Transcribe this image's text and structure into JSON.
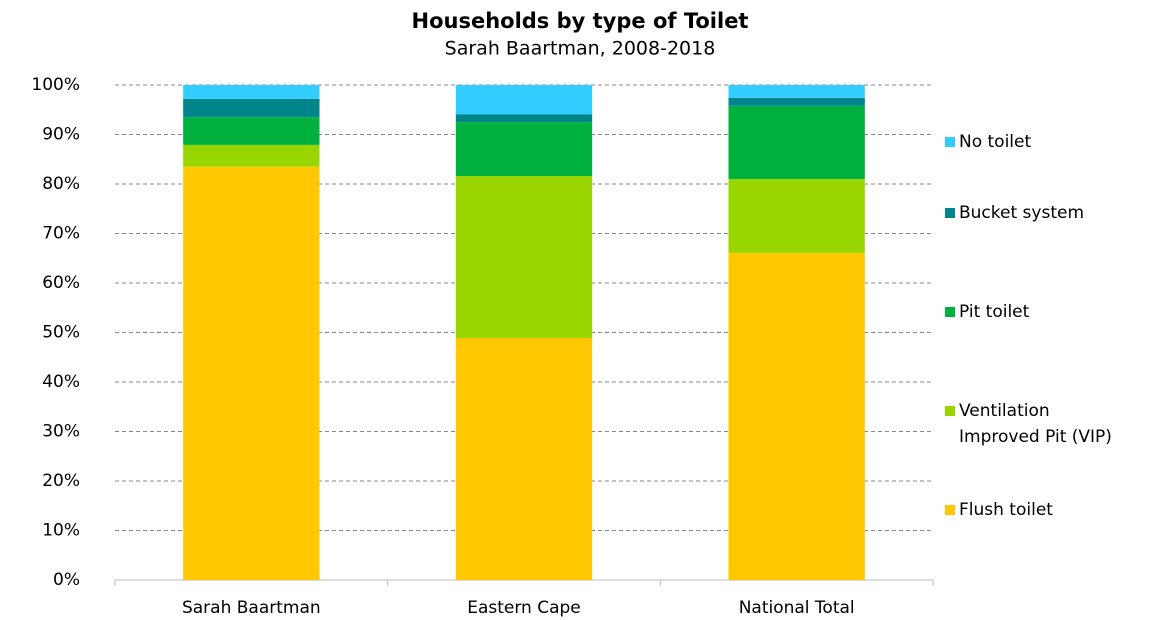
{
  "chart_data": {
    "type": "stacked_bar",
    "title": "Households  by type of Toilet",
    "subtitle": "Sarah Baartman, 2008-2018",
    "categories": [
      "Sarah Baartman",
      "Eastern Cape",
      "National Total"
    ],
    "series": [
      {
        "name": "Flush toilet",
        "color": "#ffc800",
        "values": [
          83.5,
          48.9,
          66.1
        ]
      },
      {
        "name": "Ventilation Improved Pit (VIP)",
        "color": "#99d600",
        "values": [
          4.4,
          32.7,
          14.9
        ]
      },
      {
        "name": "Pit toilet",
        "color": "#00b140",
        "values": [
          5.6,
          10.9,
          14.8
        ]
      },
      {
        "name": "Bucket system",
        "color": "#00868a",
        "values": [
          3.7,
          1.6,
          1.6
        ]
      },
      {
        "name": "No toilet",
        "color": "#33ccff",
        "values": [
          2.8,
          5.9,
          2.6
        ]
      }
    ],
    "ylim": [
      0,
      100
    ],
    "yticks": [
      {
        "value": 0,
        "label": "0%"
      },
      {
        "value": 10,
        "label": "10%"
      },
      {
        "value": 20,
        "label": "20%"
      },
      {
        "value": 30,
        "label": "30%"
      },
      {
        "value": 40,
        "label": "40%"
      },
      {
        "value": 50,
        "label": "50%"
      },
      {
        "value": 60,
        "label": "60%"
      },
      {
        "value": 70,
        "label": "70%"
      },
      {
        "value": 80,
        "label": "80%"
      },
      {
        "value": 90,
        "label": "90%"
      },
      {
        "value": 100,
        "label": "100%"
      }
    ],
    "grid": true,
    "legend": "right"
  }
}
